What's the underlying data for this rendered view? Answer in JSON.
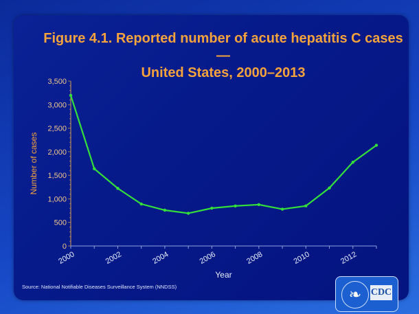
{
  "chart_data": {
    "type": "line",
    "title": "Figure 4.1. Reported number of acute hepatitis C cases — United States, 2000–2013",
    "title_line1": "Figure 4.1. Reported number of acute hepatitis C cases —",
    "title_line2": "United States, 2000–2013",
    "xlabel": "Year",
    "ylabel": "Number of cases",
    "x": [
      2000,
      2001,
      2002,
      2003,
      2004,
      2005,
      2006,
      2007,
      2008,
      2009,
      2010,
      2011,
      2012,
      2013
    ],
    "series": [
      {
        "name": "Acute hepatitis C cases",
        "color": "#33e03a",
        "values": [
          3197,
          1640,
          1223,
          891,
          760,
          694,
          802,
          849,
          878,
          781,
          850,
          1232,
          1778,
          2138
        ]
      }
    ],
    "ylim": [
      0,
      3500
    ],
    "yticks": [
      0,
      500,
      1000,
      1500,
      2000,
      2500,
      3000,
      3500
    ],
    "ytick_labels": [
      "0",
      "500",
      "1,000",
      "1,500",
      "2,000",
      "2,500",
      "3,000",
      "3,500"
    ],
    "xtick_labels": [
      "2000",
      "2002",
      "2004",
      "2006",
      "2008",
      "2010",
      "2012"
    ],
    "grid": false,
    "legend": "none"
  },
  "source": "Source: National Notifiable Diseases Surveillance System (NNDSS)",
  "logo": {
    "text": "CDC"
  },
  "colors": {
    "title": "#f5a33c",
    "line": "#33e03a",
    "axis_label": "#f5a33c",
    "tick": "#f0c68a"
  }
}
